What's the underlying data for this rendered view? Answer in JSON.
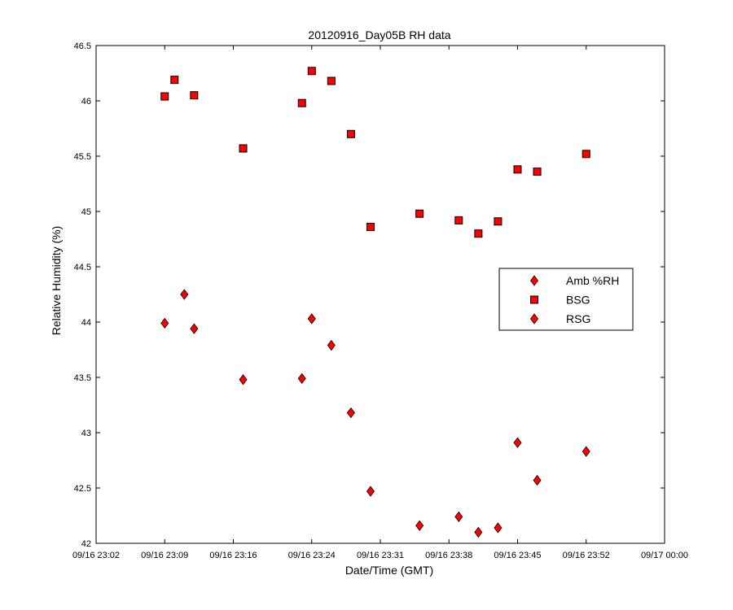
{
  "chart_data": {
    "type": "scatter",
    "title": "20120916_Day05B RH data",
    "xlabel": "Date/Time (GMT)",
    "ylabel": "Relative Humidity (%)",
    "x_ticks": [
      {
        "t": "23:02",
        "label": "09/16 23:02"
      },
      {
        "t": "23:09",
        "label": "09/16 23:09"
      },
      {
        "t": "23:16",
        "label": "09/16 23:16"
      },
      {
        "t": "23:24",
        "label": "09/16 23:24"
      },
      {
        "t": "23:31",
        "label": "09/16 23:31"
      },
      {
        "t": "23:38",
        "label": "09/16 23:38"
      },
      {
        "t": "23:45",
        "label": "09/16 23:45"
      },
      {
        "t": "23:52",
        "label": "09/16 23:52"
      },
      {
        "t": "24:00",
        "label": "09/17 00:00"
      }
    ],
    "xlim": [
      "23:02",
      "24:00"
    ],
    "ylim": [
      42,
      46.5
    ],
    "y_ticks": [
      42,
      42.5,
      43,
      43.5,
      44,
      44.5,
      45,
      45.5,
      46,
      46.5
    ],
    "y_tick_labels": [
      "42",
      "42.5",
      "43",
      "43.5",
      "44",
      "44.5",
      "45",
      "45.5",
      "46",
      "46.5"
    ],
    "grid": false,
    "legend_position": "right",
    "series": [
      {
        "name": "Amb %RH",
        "marker": "diamond",
        "color": "#ff0000",
        "x": [],
        "y": []
      },
      {
        "name": "BSG",
        "marker": "square",
        "color": "#ff0000",
        "x": [
          "23:09",
          "23:10",
          "23:12",
          "23:17",
          "23:23",
          "23:24",
          "23:26",
          "23:28",
          "23:30",
          "23:35",
          "23:39",
          "23:41",
          "23:43",
          "23:45",
          "23:47",
          "23:52"
        ],
        "y": [
          46.04,
          46.19,
          46.05,
          45.57,
          45.98,
          46.27,
          46.18,
          45.7,
          44.86,
          44.98,
          44.92,
          44.8,
          44.91,
          45.38,
          45.36,
          45.52
        ]
      },
      {
        "name": "RSG",
        "marker": "diamond",
        "color": "#ff0000",
        "x": [
          "23:09",
          "23:11",
          "23:12",
          "23:17",
          "23:23",
          "23:24",
          "23:26",
          "23:28",
          "23:30",
          "23:35",
          "23:39",
          "23:41",
          "23:43",
          "23:45",
          "23:47",
          "23:52"
        ],
        "y": [
          43.99,
          44.25,
          43.94,
          43.48,
          43.49,
          44.03,
          43.79,
          43.18,
          42.47,
          42.16,
          42.24,
          42.1,
          42.14,
          42.91,
          42.57,
          42.83
        ]
      }
    ]
  }
}
